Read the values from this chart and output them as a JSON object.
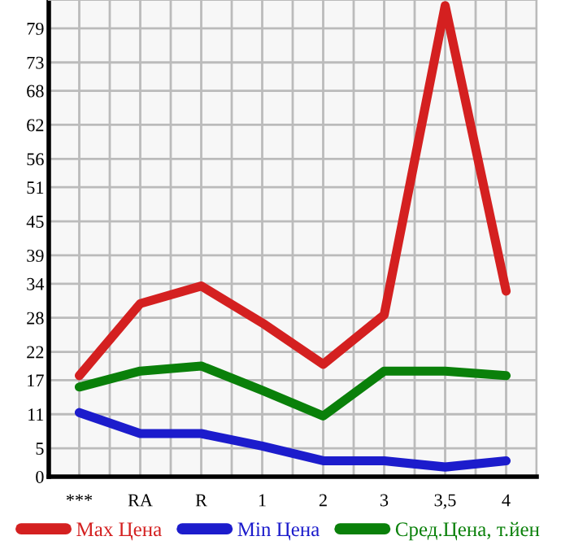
{
  "chart_data": {
    "type": "line",
    "categories": [
      "***",
      "RA",
      "R",
      "1",
      "2",
      "3",
      "3,5",
      "4"
    ],
    "series": [
      {
        "name": "Max Цена",
        "color": "#d42020",
        "values": [
          17.8,
          30.5,
          33.6,
          27.1,
          19.8,
          28.5,
          83,
          32.7
        ]
      },
      {
        "name": "Min Цена",
        "color": "#1c1ccc",
        "values": [
          11.3,
          7.6,
          7.6,
          5.4,
          2.8,
          2.8,
          1.7,
          2.8
        ]
      },
      {
        "name": "Сред.Цена, т.йен",
        "color": "#0a800a",
        "values": [
          15.8,
          18.6,
          19.5,
          15.2,
          10.7,
          18.6,
          18.6,
          17.8
        ]
      }
    ],
    "ylim": [
      0,
      84
    ],
    "yticks": [
      0,
      5,
      11,
      17,
      22,
      28,
      34,
      39,
      45,
      51,
      56,
      62,
      68,
      73,
      79
    ],
    "grid": true,
    "legend": "bottom",
    "marker": "none",
    "line_style": "solid"
  }
}
